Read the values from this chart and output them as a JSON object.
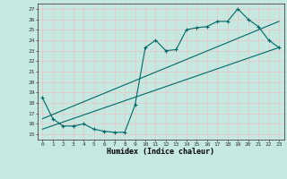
{
  "xlabel": "Humidex (Indice chaleur)",
  "bg_color": "#c5e8e0",
  "grid_color": "#e8c8c8",
  "line_color": "#006868",
  "xlim": [
    -0.5,
    23.5
  ],
  "ylim": [
    14.5,
    27.5
  ],
  "xticks": [
    0,
    1,
    2,
    3,
    4,
    5,
    6,
    7,
    8,
    9,
    10,
    11,
    12,
    13,
    14,
    15,
    16,
    17,
    18,
    19,
    20,
    21,
    22,
    23
  ],
  "yticks": [
    15,
    16,
    17,
    18,
    19,
    20,
    21,
    22,
    23,
    24,
    25,
    26,
    27
  ],
  "series1_x": [
    0,
    1,
    2,
    3,
    4,
    5,
    6,
    7,
    8,
    9,
    10,
    11,
    12,
    13,
    14,
    15,
    16,
    17,
    18,
    19,
    20,
    21,
    22,
    23
  ],
  "series1_y": [
    18.5,
    16.5,
    15.8,
    15.8,
    16.0,
    15.5,
    15.3,
    15.2,
    15.2,
    17.8,
    23.3,
    24.0,
    23.0,
    23.1,
    25.0,
    25.2,
    25.3,
    25.8,
    25.8,
    27.0,
    26.0,
    25.3,
    24.0,
    23.3
  ],
  "series2_x": [
    0,
    23
  ],
  "series2_y": [
    15.5,
    23.3
  ],
  "series3_x": [
    0,
    23
  ],
  "series3_y": [
    16.5,
    25.8
  ]
}
